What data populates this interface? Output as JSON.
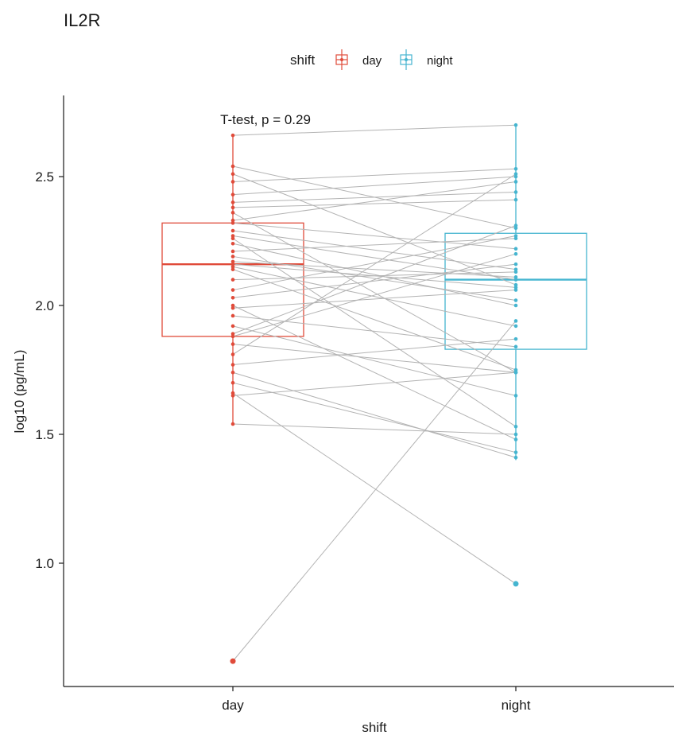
{
  "chart_data": {
    "type": "paired-boxplot",
    "title": "IL2R",
    "xlabel": "shift",
    "ylabel": "log10 (pg/mL)",
    "ylim": [
      0.5,
      2.8
    ],
    "y_ticks": [
      1.0,
      1.5,
      2.0,
      2.5
    ],
    "y_tick_labels": [
      "1.0",
      "1.5",
      "2.0",
      "2.5"
    ],
    "categories": [
      "day",
      "night"
    ],
    "legend": {
      "title": "shift",
      "position": "top",
      "entries": [
        "day",
        "night"
      ]
    },
    "annotation": "T-test, p = 0.29",
    "colors": {
      "day": "#e04b3a",
      "night": "#45b5d0",
      "pair_line": "#b3b3b3",
      "axis": "#1a1a1a"
    },
    "box": {
      "day": {
        "q1": 1.88,
        "median": 2.16,
        "q3": 2.32,
        "min": 1.54,
        "max": 2.66
      },
      "night": {
        "q1": 1.83,
        "median": 2.1,
        "q3": 2.28,
        "min": 1.4,
        "max": 2.7
      }
    },
    "outliers": {
      "day": [
        0.62
      ],
      "night": [
        0.92
      ]
    },
    "pairs": [
      [
        2.66,
        2.7
      ],
      [
        2.54,
        2.3
      ],
      [
        2.51,
        2.08
      ],
      [
        2.48,
        2.53
      ],
      [
        2.43,
        2.5
      ],
      [
        2.4,
        2.44
      ],
      [
        2.38,
        2.41
      ],
      [
        2.36,
        1.74
      ],
      [
        2.33,
        2.48
      ],
      [
        2.32,
        2.22
      ],
      [
        2.29,
        2.14
      ],
      [
        2.27,
        2.1
      ],
      [
        2.26,
        1.53
      ],
      [
        2.24,
        2.0
      ],
      [
        2.21,
        2.26
      ],
      [
        2.19,
        2.02
      ],
      [
        2.17,
        2.11
      ],
      [
        2.16,
        2.07
      ],
      [
        2.15,
        1.92
      ],
      [
        2.14,
        1.75
      ],
      [
        2.1,
        2.13
      ],
      [
        2.06,
        2.27
      ],
      [
        2.03,
        2.16
      ],
      [
        2.0,
        1.48
      ],
      [
        1.99,
        2.06
      ],
      [
        1.96,
        1.84
      ],
      [
        1.92,
        1.65
      ],
      [
        1.89,
        2.31
      ],
      [
        1.88,
        2.2
      ],
      [
        1.85,
        1.74
      ],
      [
        1.81,
        2.51
      ],
      [
        1.77,
        1.87
      ],
      [
        1.74,
        1.41
      ],
      [
        1.7,
        1.43
      ],
      [
        1.65,
        1.74
      ],
      [
        1.66,
        0.92
      ],
      [
        1.54,
        1.5
      ],
      [
        0.62,
        1.94
      ]
    ]
  }
}
